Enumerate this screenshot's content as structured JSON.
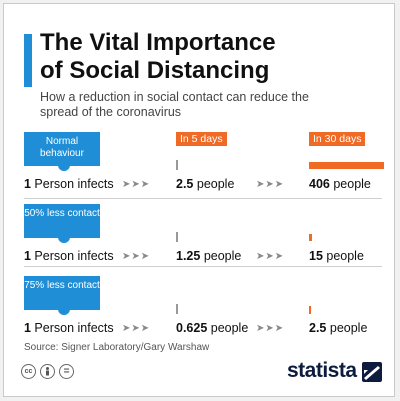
{
  "colors": {
    "blue": "#1f8ed6",
    "orange": "#ee6a25",
    "dark": "#0d1b3e"
  },
  "header": {
    "title_line1": "The Vital Importance",
    "title_line2": "of Social Distancing",
    "subtitle": "How a reduction in social contact can reduce the spread of the coronavirus"
  },
  "stages": {
    "start": "",
    "mid": "In 5 days",
    "end": "In 30 days"
  },
  "chart_data": {
    "type": "bar",
    "title": "The Vital Importance of Social Distancing",
    "subtitle": "How a reduction in social contact can reduce the spread of the coronavirus",
    "categories": [
      "Normal behaviour",
      "50% less contact",
      "75% less contact"
    ],
    "series": [
      {
        "name": "In 5 days",
        "values": [
          2.5,
          1.25,
          0.625
        ]
      },
      {
        "name": "In 30 days",
        "values": [
          406,
          15,
          2.5
        ]
      }
    ],
    "rows": [
      {
        "label": "Normal behaviour",
        "start": "1 Person infects",
        "day5": "2.5 people",
        "day30": "406 people",
        "day5_value": 2.5,
        "day30_value": 406
      },
      {
        "label": "50% less contact",
        "start": "1 Person infects",
        "day5": "1.25 people",
        "day30": "15 people",
        "day5_value": 1.25,
        "day30_value": 15
      },
      {
        "label": "75% less contact",
        "start": "1 Person infects",
        "day5": "0.625 people",
        "day30": "2.5 people",
        "day5_value": 0.625,
        "day30_value": 2.5
      }
    ],
    "max_value": 406
  },
  "arrows": "➤➤➤",
  "footer": {
    "source": "Source: Signer Laboratory/Gary Warshaw",
    "license_icons": [
      "cc-icon",
      "person-icon",
      "equals-icon"
    ],
    "brand": "statista"
  }
}
